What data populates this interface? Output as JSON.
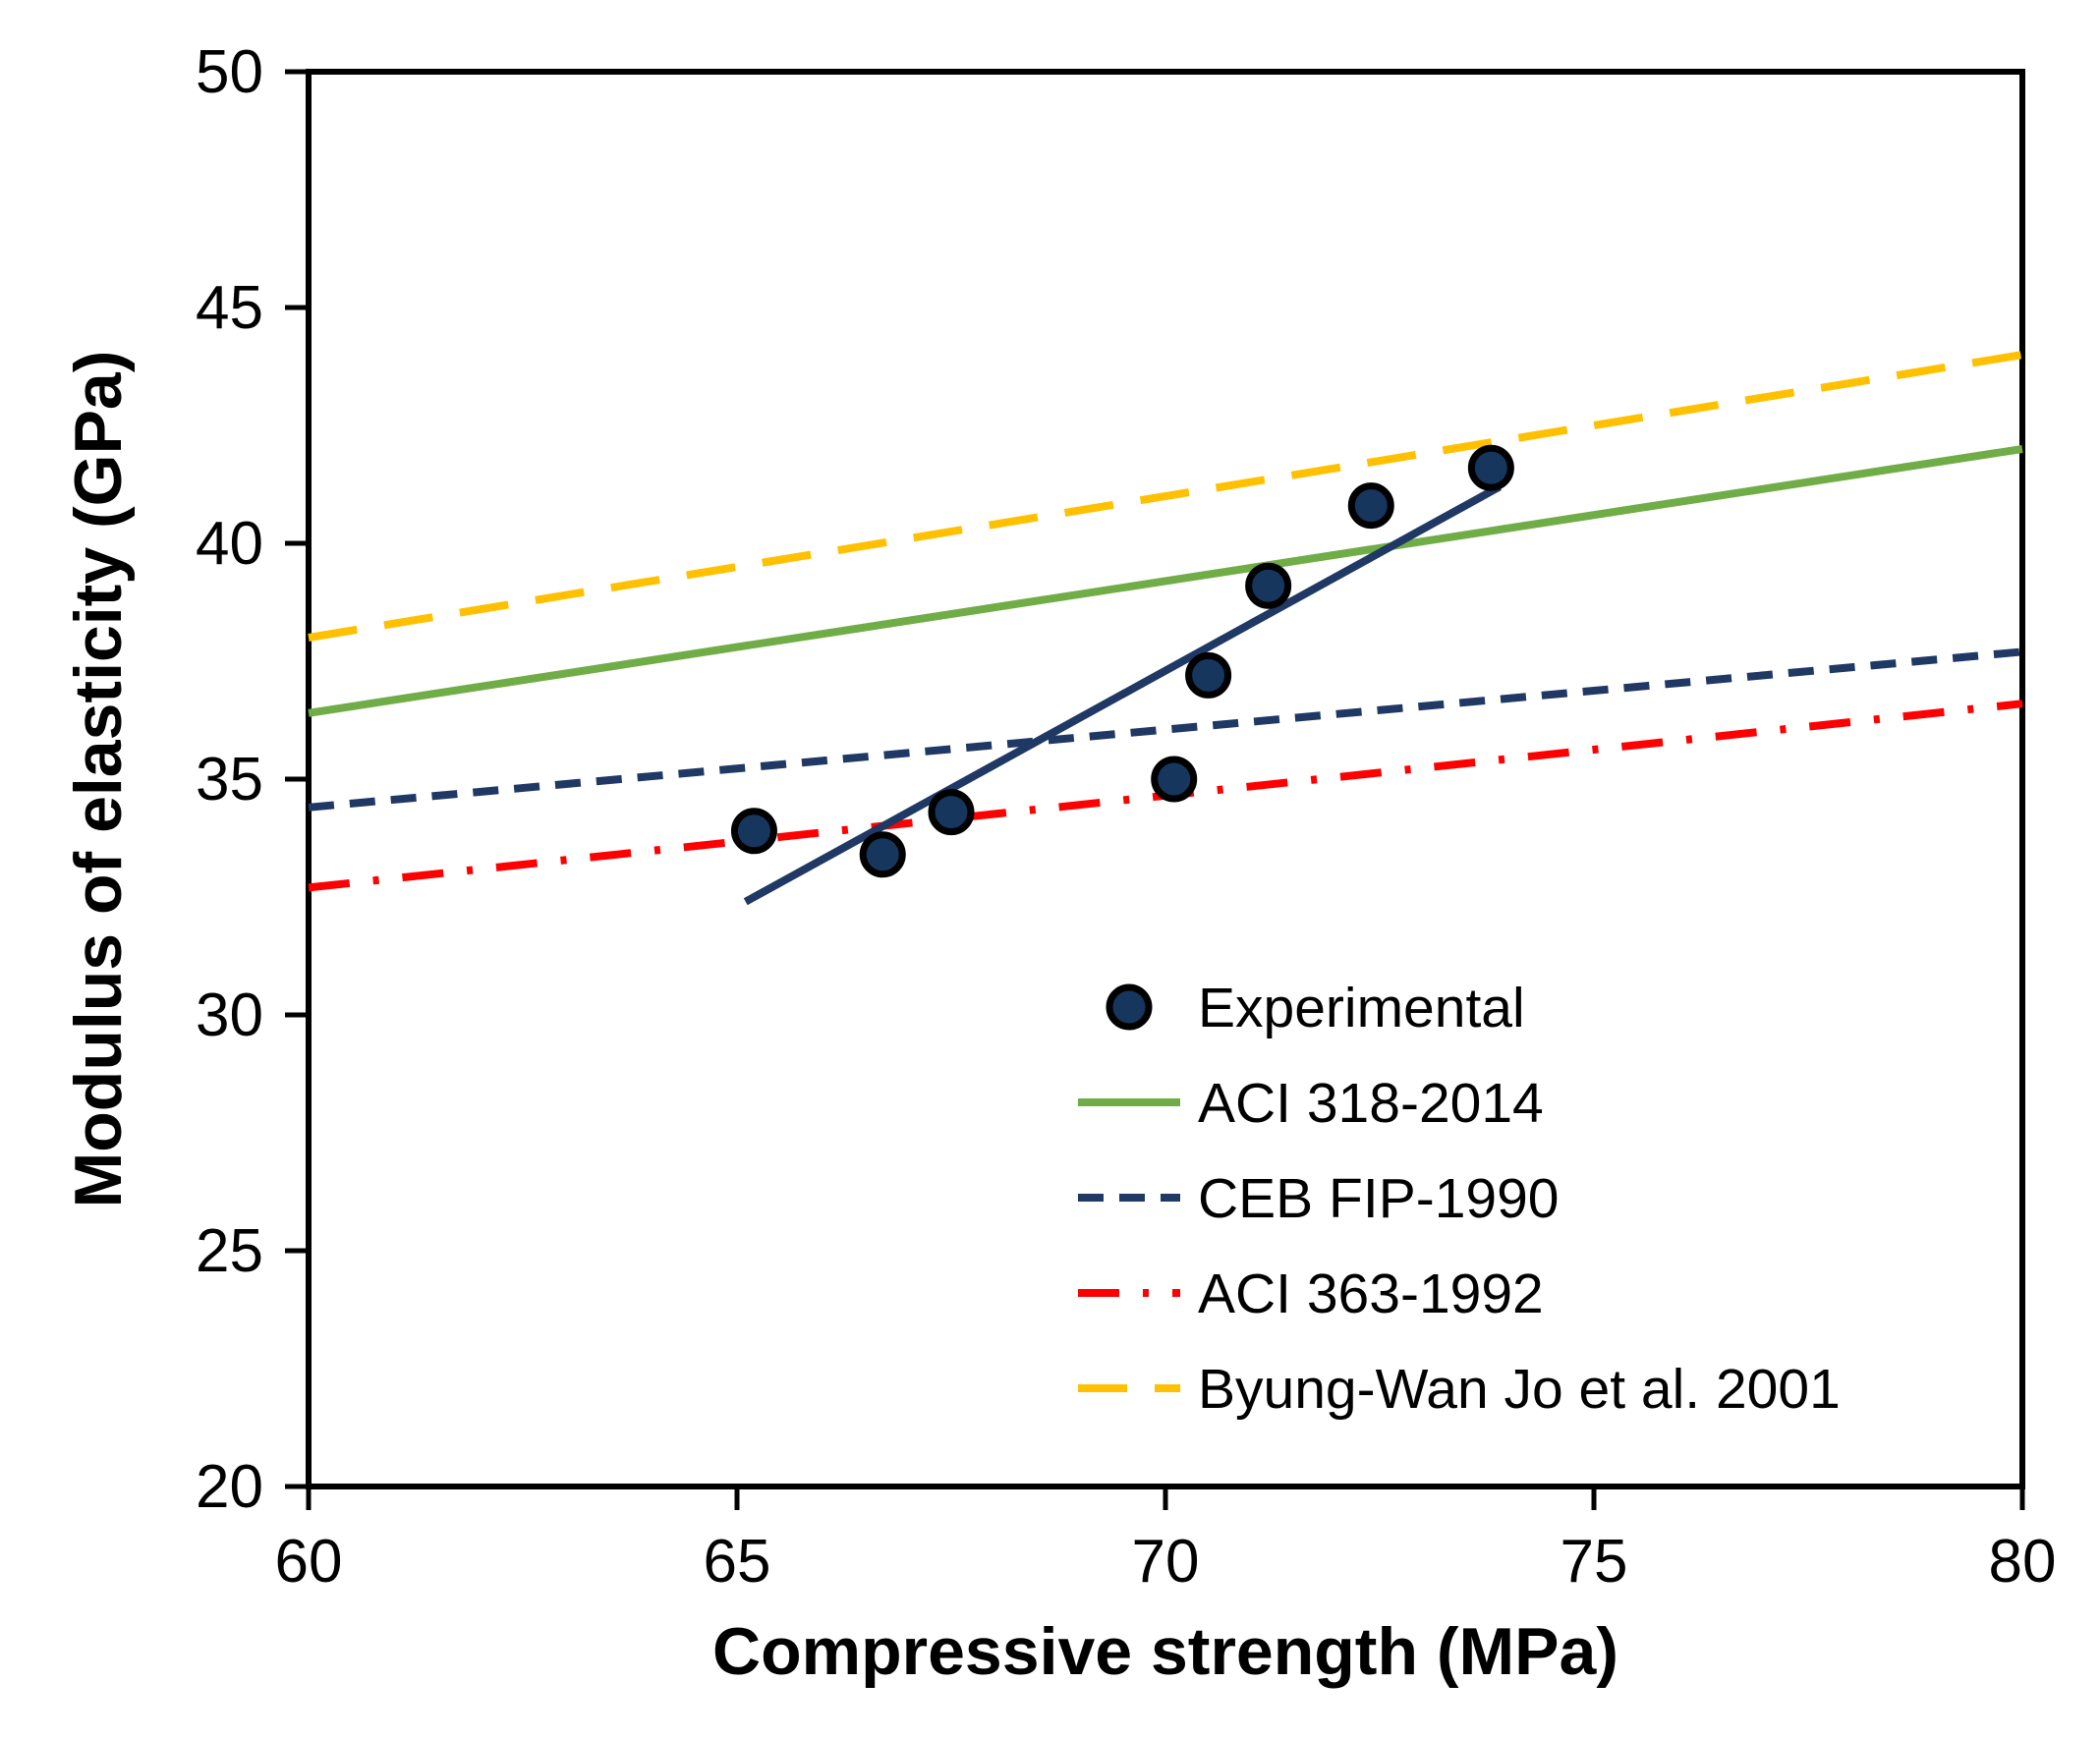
{
  "chart_data": {
    "type": "scatter",
    "title": "",
    "xlabel": "Compressive strength (MPa)",
    "ylabel": "Modulus of elasticity (GPa)",
    "xlim": [
      60,
      80
    ],
    "ylim": [
      20,
      50
    ],
    "xticks": [
      60,
      65,
      70,
      75,
      80
    ],
    "yticks": [
      20,
      25,
      30,
      35,
      40,
      45,
      50
    ],
    "grid": false,
    "legend_position": "inside-lower-right",
    "axis_color": "#000000",
    "background_color": "#FFFFFF",
    "series": [
      {
        "name": "Experimental",
        "type": "scatter",
        "marker": "circle",
        "color": "#17365D",
        "marker_edge_color": "#000000",
        "in_legend": true,
        "points": [
          [
            65.2,
            33.9
          ],
          [
            66.7,
            33.4
          ],
          [
            67.5,
            34.3
          ],
          [
            70.1,
            35.0
          ],
          [
            70.5,
            37.2
          ],
          [
            71.2,
            39.1
          ],
          [
            72.4,
            40.8
          ],
          [
            73.8,
            41.6
          ]
        ]
      },
      {
        "name": "Experimental trend line",
        "type": "line",
        "style": "solid",
        "color": "#1F3864",
        "in_legend": false,
        "points": [
          [
            65.1,
            32.4
          ],
          [
            73.9,
            41.2
          ]
        ]
      },
      {
        "name": "ACI 318-2014",
        "type": "line",
        "style": "solid",
        "color": "#70AD47",
        "in_legend": true,
        "points": [
          [
            60,
            36.4
          ],
          [
            80,
            42.0
          ]
        ]
      },
      {
        "name": "CEB FIP-1990",
        "type": "line",
        "style": "dashed",
        "color": "#1F3864",
        "in_legend": true,
        "points": [
          [
            60,
            34.4
          ],
          [
            80,
            37.7
          ]
        ]
      },
      {
        "name": "ACI 363-1992",
        "type": "line",
        "style": "dashdot",
        "color": "#FF0000",
        "in_legend": true,
        "points": [
          [
            60,
            32.7
          ],
          [
            80,
            36.6
          ]
        ]
      },
      {
        "name": "Byung-Wan Jo et al. 2001",
        "type": "line",
        "style": "longdash",
        "color": "#FFC000",
        "in_legend": true,
        "points": [
          [
            60,
            38.0
          ],
          [
            80,
            44.0
          ]
        ]
      }
    ]
  }
}
